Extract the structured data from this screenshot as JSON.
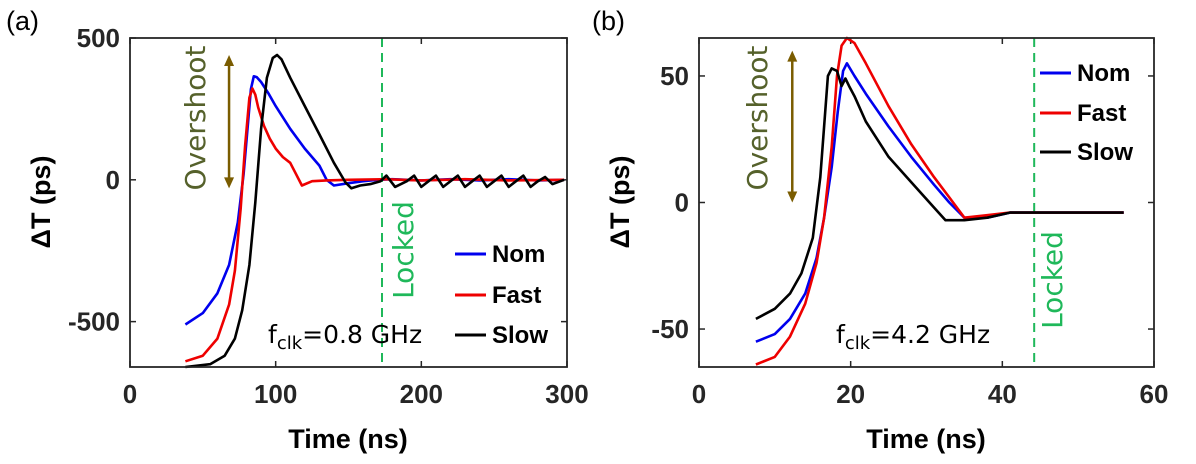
{
  "chart_data": [
    {
      "panel_label": "(a)",
      "type": "line",
      "xlabel": "Time (ns)",
      "ylabel": "ΔT (ps)",
      "xlim": [
        0,
        300
      ],
      "ylim": [
        -660,
        500
      ],
      "xticks": [
        "0",
        "100",
        "200",
        "300"
      ],
      "yticks": [
        "-500",
        "0",
        "500"
      ],
      "xtick_values": [
        0,
        100,
        200,
        300
      ],
      "ytick_values": [
        -500,
        0,
        500
      ],
      "locked_x": 173,
      "locked_label": "Locked",
      "overshoot": {
        "label": "Overshoot",
        "x": 68,
        "y_top": 440,
        "y_bottom": -30
      },
      "annotation": {
        "base": "f",
        "sub": "clk",
        "rest": "=0.8 GHz"
      },
      "legend_position": "bottom-right",
      "series": [
        {
          "name": "Nom",
          "color": "#0000ee",
          "x": [
            38,
            50,
            60,
            68,
            74,
            78,
            81,
            83,
            85,
            87,
            90,
            95,
            100,
            110,
            120,
            130,
            135,
            140,
            150,
            160,
            170,
            180,
            200,
            220,
            240,
            260,
            280,
            298
          ],
          "y": [
            -510,
            -470,
            -400,
            -300,
            -150,
            20,
            200,
            320,
            365,
            362,
            345,
            305,
            260,
            180,
            110,
            50,
            0,
            -20,
            -12,
            -5,
            0,
            2,
            -2,
            2,
            -2,
            2,
            -2,
            0
          ]
        },
        {
          "name": "Fast",
          "color": "#ee0000",
          "x": [
            38,
            50,
            60,
            68,
            72,
            76,
            79,
            82,
            84,
            86,
            88,
            92,
            96,
            100,
            105,
            110,
            113,
            118,
            125,
            135,
            150,
            175,
            200,
            230,
            260,
            298
          ],
          "y": [
            -640,
            -620,
            -560,
            -440,
            -320,
            -100,
            120,
            290,
            322,
            300,
            255,
            190,
            145,
            110,
            80,
            60,
            30,
            -20,
            -5,
            -2,
            0,
            2,
            -2,
            2,
            -2,
            0
          ]
        },
        {
          "name": "Slow",
          "color": "#000000",
          "x": [
            38,
            55,
            65,
            72,
            77,
            82,
            86,
            90,
            94,
            98,
            101,
            104,
            110,
            120,
            130,
            140,
            148,
            152,
            158,
            165,
            172,
            176,
            182,
            190,
            195,
            200,
            205,
            210,
            215,
            220,
            225,
            230,
            235,
            240,
            245,
            250,
            255,
            260,
            265,
            270,
            275,
            280,
            285,
            290,
            298
          ],
          "y": [
            -660,
            -650,
            -620,
            -560,
            -460,
            -300,
            -80,
            180,
            360,
            430,
            440,
            425,
            360,
            260,
            160,
            60,
            -10,
            -30,
            -20,
            -15,
            -5,
            15,
            -25,
            -5,
            15,
            -25,
            -5,
            15,
            -25,
            -5,
            15,
            -25,
            -5,
            15,
            -25,
            -5,
            15,
            -25,
            -5,
            15,
            -25,
            -5,
            10,
            -15,
            0
          ]
        }
      ]
    },
    {
      "panel_label": "(b)",
      "type": "line",
      "xlabel": "Time (ns)",
      "ylabel": "ΔT (ps)",
      "xlim": [
        0,
        60
      ],
      "ylim": [
        -65,
        65
      ],
      "xticks": [
        "0",
        "20",
        "40",
        "60"
      ],
      "yticks": [
        "-50",
        "0",
        "50"
      ],
      "xtick_values": [
        0,
        20,
        40,
        60
      ],
      "ytick_values": [
        -50,
        0,
        50
      ],
      "locked_x": 44.2,
      "locked_label": "Locked",
      "overshoot": {
        "label": "Overshoot",
        "x": 12.3,
        "y_top": 60,
        "y_bottom": 0
      },
      "annotation": {
        "base": "f",
        "sub": "clk",
        "rest": "=4.2 GHz"
      },
      "legend_position": "top-right",
      "series": [
        {
          "name": "Nom",
          "color": "#0000ee",
          "x": [
            7.5,
            10,
            12,
            14,
            15.5,
            16.5,
            17.5,
            18.3,
            19,
            19.5,
            20.5,
            22,
            25,
            28,
            31,
            33,
            35,
            38,
            41,
            44,
            48,
            52,
            56
          ],
          "y": [
            -55,
            -52,
            -46,
            -36,
            -22,
            -6,
            14,
            36,
            52,
            55,
            50,
            43,
            30,
            18,
            7,
            0,
            -6,
            -6,
            -4,
            -4,
            -4,
            -4,
            -4
          ]
        },
        {
          "name": "Fast",
          "color": "#ee0000",
          "x": [
            7.5,
            10,
            12,
            14,
            15.5,
            16.5,
            17.5,
            18.2,
            18.8,
            19.5,
            20.5,
            22,
            25,
            28,
            31,
            33,
            35,
            38,
            41,
            44,
            48,
            52,
            56
          ],
          "y": [
            -64,
            -61,
            -53,
            -40,
            -24,
            -6,
            22,
            50,
            62,
            65,
            63,
            55,
            38,
            23,
            10,
            2,
            -6,
            -5,
            -4,
            -4,
            -4,
            -4,
            -4
          ]
        },
        {
          "name": "Slow",
          "color": "#000000",
          "x": [
            7.5,
            10,
            12,
            13.5,
            15,
            16,
            17,
            17.5,
            18.2,
            18.8,
            19.3,
            19.8,
            20.5,
            22,
            25,
            28,
            31,
            32.5,
            35,
            38,
            41,
            44,
            48,
            52,
            56
          ],
          "y": [
            -46,
            -42,
            -36,
            -28,
            -14,
            10,
            50,
            53,
            52,
            46,
            49,
            46,
            42,
            32,
            18,
            8,
            -2,
            -7,
            -7,
            -6,
            -4,
            -4,
            -4,
            -4,
            -4
          ]
        }
      ]
    }
  ]
}
